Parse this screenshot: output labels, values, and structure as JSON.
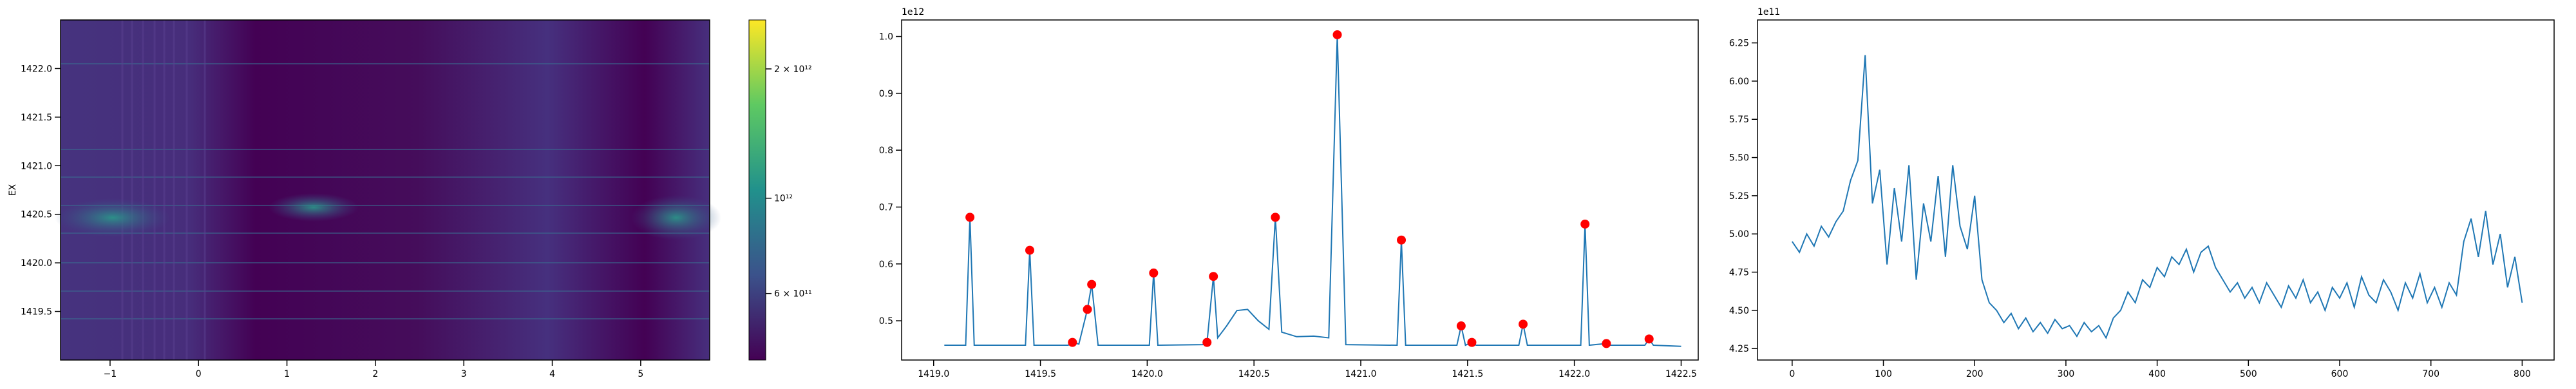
{
  "chart_data": [
    {
      "type": "heatmap",
      "ylabel": "EX",
      "xlim": [
        -1.56,
        5.78
      ],
      "ylim": [
        1419.0,
        1422.5
      ],
      "xticks": [
        {
          "value": -1,
          "label": "−1"
        },
        0,
        1,
        2,
        3,
        4,
        5
      ],
      "yticks": [
        1419.5,
        {
          "value": 1420,
          "label": "1420.0"
        },
        1420.5,
        {
          "value": 1421,
          "label": "1421.0"
        },
        1421.5,
        {
          "value": 1422,
          "label": "1422.0"
        }
      ],
      "colorbar": {
        "scale": "log",
        "clim": [
          420000000000,
          2600000000000
        ],
        "ticks": [
          {
            "value": 600000000000,
            "label": "6 × 10¹¹"
          },
          {
            "value": 1000000000000,
            "label": "10¹²"
          },
          {
            "value": 2000000000000,
            "label": "2 × 10¹²"
          }
        ]
      }
    },
    {
      "type": "line",
      "offset_label": "1e12",
      "xlim": [
        1418.85,
        1422.58
      ],
      "ylim": [
        0.431,
        1.029
      ],
      "xticks": [
        {
          "value": 1419,
          "label": "1419.0"
        },
        1419.5,
        {
          "value": 1420,
          "label": "1420.0"
        },
        1420.5,
        {
          "value": 1421,
          "label": "1421.0"
        },
        1421.5,
        {
          "value": 1422,
          "label": "1422.0"
        },
        1422.5
      ],
      "yticks": [
        0.5,
        0.6,
        0.7,
        0.8,
        0.9,
        {
          "value": 1,
          "label": "1.0"
        }
      ],
      "x": [
        1419.05,
        1419.15,
        1419.17,
        1419.19,
        1419.43,
        1419.45,
        1419.47,
        1419.63,
        1419.65,
        1419.68,
        1419.72,
        1419.74,
        1419.77,
        1420.01,
        1420.03,
        1420.05,
        1420.26,
        1420.28,
        1420.31,
        1420.33,
        1420.37,
        1420.42,
        1420.47,
        1420.52,
        1420.57,
        1420.6,
        1420.63,
        1420.7,
        1420.78,
        1420.85,
        1420.89,
        1420.93,
        1421.17,
        1421.19,
        1421.21,
        1421.45,
        1421.47,
        1421.49,
        1421.52,
        1421.54,
        1421.74,
        1421.76,
        1421.78,
        1422.03,
        1422.05,
        1422.07,
        1422.15,
        1422.17,
        1422.33,
        1422.35,
        1422.37,
        1422.5
      ],
      "series": [
        {
          "color": "#1f77b4",
          "values": [
            0.457,
            0.457,
            0.682,
            0.457,
            0.457,
            0.624,
            0.457,
            0.457,
            0.462,
            0.459,
            0.52,
            0.564,
            0.457,
            0.457,
            0.584,
            0.457,
            0.458,
            0.462,
            0.578,
            0.47,
            0.49,
            0.518,
            0.52,
            0.5,
            0.485,
            0.682,
            0.48,
            0.472,
            0.473,
            0.47,
            1.003,
            0.458,
            0.457,
            0.642,
            0.457,
            0.457,
            0.491,
            0.457,
            0.462,
            0.457,
            0.457,
            0.494,
            0.457,
            0.457,
            0.67,
            0.457,
            0.46,
            0.457,
            0.457,
            0.468,
            0.457,
            0.455
          ]
        }
      ],
      "points": {
        "color": "red",
        "x": [
          1419.17,
          1419.45,
          1419.65,
          1419.72,
          1419.74,
          1420.03,
          1420.28,
          1420.31,
          1420.6,
          1420.89,
          1421.19,
          1421.47,
          1421.52,
          1421.76,
          1422.05,
          1422.15,
          1422.35
        ],
        "values": [
          0.682,
          0.624,
          0.462,
          0.52,
          0.564,
          0.584,
          0.462,
          0.578,
          0.682,
          1.003,
          0.642,
          0.491,
          0.462,
          0.494,
          0.67,
          0.46,
          0.468
        ]
      }
    },
    {
      "type": "line",
      "offset_label": "1e11",
      "xlim": [
        -38,
        835
      ],
      "ylim": [
        4.175,
        6.4
      ],
      "xticks": [
        0,
        100,
        200,
        300,
        400,
        500,
        600,
        700,
        800
      ],
      "yticks": [
        4.25,
        {
          "value": 4.5,
          "label": "4.50"
        },
        4.75,
        {
          "value": 5,
          "label": "5.00"
        },
        5.25,
        {
          "value": 5.5,
          "label": "5.50"
        },
        5.75,
        {
          "value": 6,
          "label": "6.00"
        },
        6.25
      ],
      "x": [
        0,
        8,
        16,
        24,
        32,
        40,
        48,
        56,
        64,
        72,
        80,
        88,
        96,
        104,
        112,
        120,
        128,
        136,
        144,
        152,
        160,
        168,
        176,
        184,
        192,
        200,
        208,
        216,
        224,
        232,
        240,
        248,
        256,
        264,
        272,
        280,
        288,
        296,
        304,
        312,
        320,
        328,
        336,
        344,
        352,
        360,
        368,
        376,
        384,
        392,
        400,
        408,
        416,
        424,
        432,
        440,
        448,
        456,
        464,
        472,
        480,
        488,
        496,
        504,
        512,
        520,
        528,
        536,
        544,
        552,
        560,
        568,
        576,
        584,
        592,
        600,
        608,
        616,
        624,
        632,
        640,
        648,
        656,
        664,
        672,
        680,
        688,
        696,
        704,
        712,
        720,
        728,
        736,
        744,
        752,
        760,
        768,
        776,
        784,
        792,
        800
      ],
      "series": [
        {
          "color": "#1f77b4",
          "values": [
            4.95,
            4.88,
            5.0,
            4.92,
            5.05,
            4.98,
            5.08,
            5.15,
            5.35,
            5.48,
            6.17,
            5.2,
            5.42,
            4.8,
            5.3,
            4.95,
            5.45,
            4.7,
            5.2,
            4.95,
            5.38,
            4.85,
            5.45,
            5.05,
            4.9,
            5.25,
            4.7,
            4.55,
            4.5,
            4.42,
            4.48,
            4.38,
            4.45,
            4.36,
            4.42,
            4.35,
            4.44,
            4.38,
            4.4,
            4.33,
            4.42,
            4.36,
            4.4,
            4.32,
            4.45,
            4.5,
            4.62,
            4.55,
            4.7,
            4.65,
            4.78,
            4.72,
            4.85,
            4.8,
            4.9,
            4.75,
            4.88,
            4.92,
            4.78,
            4.7,
            4.62,
            4.68,
            4.58,
            4.65,
            4.55,
            4.68,
            4.6,
            4.52,
            4.66,
            4.58,
            4.7,
            4.55,
            4.62,
            4.5,
            4.65,
            4.58,
            4.68,
            4.52,
            4.72,
            4.6,
            4.55,
            4.7,
            4.62,
            4.5,
            4.68,
            4.58,
            4.74,
            4.55,
            4.65,
            4.52,
            4.68,
            4.6,
            4.95,
            5.1,
            4.85,
            5.15,
            4.8,
            5.0,
            4.65,
            4.85,
            4.55
          ]
        }
      ]
    }
  ]
}
